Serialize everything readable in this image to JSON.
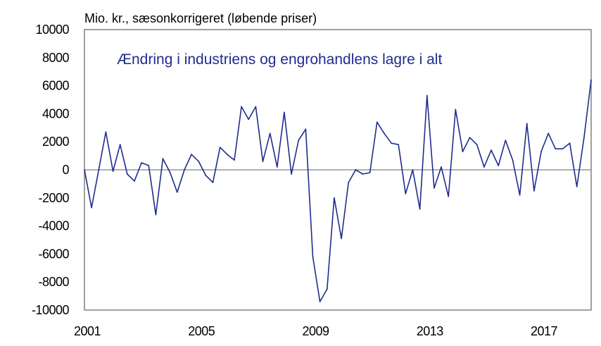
{
  "chart_data": {
    "type": "line",
    "title": "",
    "ylabel": "Mio. kr., sæsonkorrigeret (løbende priser)",
    "xlabel": "",
    "annotation": "Ændring i industriens og engrohandlens lagre i alt",
    "ylim": [
      -10000,
      10000
    ],
    "yticks": [
      10000,
      8000,
      6000,
      4000,
      2000,
      0,
      -2000,
      -4000,
      -6000,
      -8000,
      -10000
    ],
    "ytick_labels": [
      "10000",
      "8000",
      "6000",
      "4000",
      "2000",
      "0",
      "-2000",
      "-4000",
      "-6000",
      "-8000",
      "-10000"
    ],
    "xlim": [
      2001.0,
      2018.75
    ],
    "xticks": [
      2001,
      2005,
      2009,
      2013,
      2017
    ],
    "xtick_labels": [
      "2001",
      "2005",
      "2009",
      "2013",
      "2017"
    ],
    "grid": false,
    "zero_line": true,
    "line_color": "#1f2d8c",
    "axis_color": "#808080",
    "annotation_color": "#1f2d8c",
    "series": [
      {
        "x": [
          "2001Q1",
          "2001Q2",
          "2001Q3",
          "2001Q4",
          "2002Q1",
          "2002Q2",
          "2002Q3",
          "2002Q4",
          "2003Q1",
          "2003Q2",
          "2003Q3",
          "2003Q4",
          "2004Q1",
          "2004Q2",
          "2004Q3",
          "2004Q4",
          "2005Q1",
          "2005Q2",
          "2005Q3",
          "2005Q4",
          "2006Q1",
          "2006Q2",
          "2006Q3",
          "2006Q4",
          "2007Q1",
          "2007Q2",
          "2007Q3",
          "2007Q4",
          "2008Q1",
          "2008Q2",
          "2008Q3",
          "2008Q4",
          "2009Q1",
          "2009Q2",
          "2009Q3",
          "2009Q4",
          "2010Q1",
          "2010Q2",
          "2010Q3",
          "2010Q4",
          "2011Q1",
          "2011Q2",
          "2011Q3",
          "2011Q4",
          "2012Q1",
          "2012Q2",
          "2012Q3",
          "2012Q4",
          "2013Q1",
          "2013Q2",
          "2013Q3",
          "2013Q4",
          "2014Q1",
          "2014Q2",
          "2014Q3",
          "2014Q4",
          "2015Q1",
          "2015Q2",
          "2015Q3",
          "2015Q4",
          "2016Q1",
          "2016Q2",
          "2016Q3",
          "2016Q4",
          "2017Q1",
          "2017Q2",
          "2017Q3",
          "2017Q4",
          "2018Q1",
          "2018Q2",
          "2018Q3",
          "2018Q4"
        ],
        "values": [
          0,
          -2700,
          0,
          2700,
          -100,
          1800,
          -300,
          -800,
          500,
          300,
          -3200,
          800,
          -200,
          -1600,
          0,
          1100,
          600,
          -400,
          -900,
          1600,
          1100,
          700,
          4500,
          3600,
          4500,
          600,
          2600,
          200,
          4100,
          -300,
          2100,
          2900,
          -6200,
          -9400,
          -8500,
          -2000,
          -4900,
          -900,
          0,
          -300,
          -200,
          3400,
          2600,
          1900,
          1800,
          -1700,
          0,
          -2800,
          5300,
          -1300,
          200,
          -1900,
          4300,
          1300,
          2300,
          1800,
          200,
          1400,
          300,
          2100,
          700,
          -1800,
          3300,
          -1500,
          1300,
          2600,
          1500,
          1500,
          1900,
          -1200,
          2300,
          6400
        ]
      }
    ]
  }
}
